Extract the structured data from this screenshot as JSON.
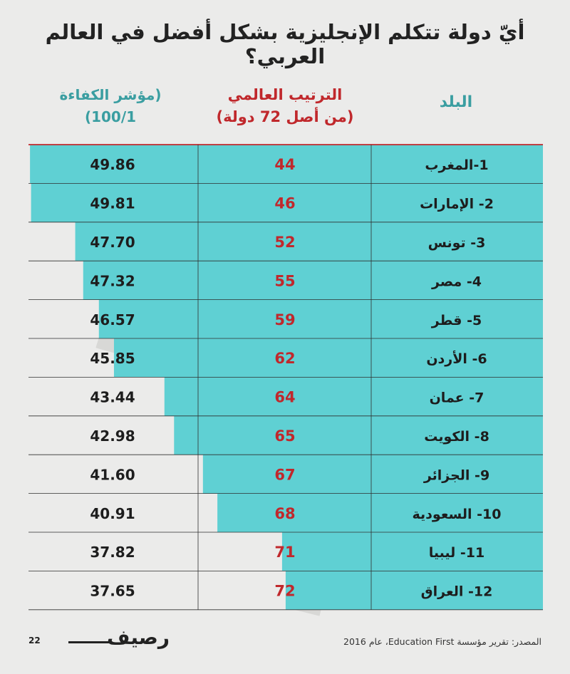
{
  "title": "أيّ دولة تتكلم الإنجليزية بشكل أفضل في العالم العربي؟",
  "columns": {
    "country": "البلد",
    "rank_line1": "الترتيب العالمي",
    "rank_line2": "(من أصل 72 دولة)",
    "index_line1": "(مؤشر الكفاءة",
    "index_line2": "100/1)"
  },
  "colors": {
    "teal": "#5fd0d3",
    "rank_red": "#c0282c",
    "grid": "#2f2f2f",
    "header_line": "#c0282c"
  },
  "chart_data": {
    "type": "table",
    "countries": [
      "1-المغرب",
      "2- الإمارات",
      "3- تونس",
      "4- مصر",
      "5- قطر",
      "6- الأردن",
      "7- عمان",
      "8- الكويت",
      "9- الجزائر",
      "10- السعودية",
      "11- ليبيا",
      "12- العراق"
    ],
    "ranks": [
      44,
      46,
      52,
      55,
      59,
      62,
      64,
      65,
      67,
      68,
      71,
      72
    ],
    "index_labels": [
      "49.86",
      "49.81",
      "47.70",
      "47.32",
      "46.57",
      "45.85",
      "43.44",
      "42.98",
      "41.60",
      "40.91",
      "37.82",
      "37.65"
    ],
    "index_values": [
      49.86,
      49.81,
      47.7,
      47.32,
      46.57,
      45.85,
      43.44,
      42.98,
      41.6,
      40.91,
      37.82,
      37.65
    ]
  },
  "footer": {
    "source": "المصدر: تقرير مؤسسة Education First، عام 2016",
    "logo": "رصيف",
    "logo_number": "22"
  }
}
